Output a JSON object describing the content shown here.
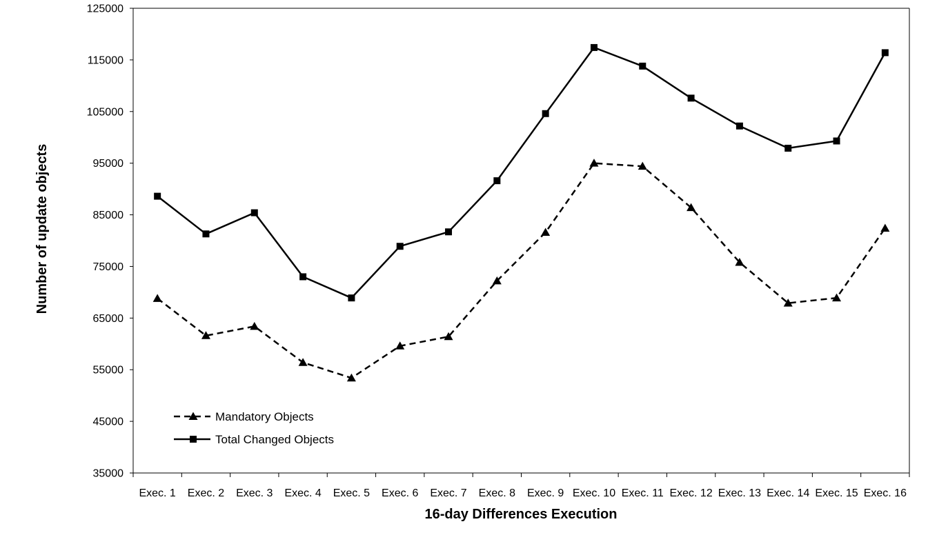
{
  "chart_data": {
    "type": "line",
    "title": "",
    "xlabel": "16-day Differences Execution",
    "ylabel": "Number of update objects",
    "categories": [
      "Exec. 1",
      "Exec. 2",
      "Exec. 3",
      "Exec. 4",
      "Exec. 5",
      "Exec. 6",
      "Exec. 7",
      "Exec. 8",
      "Exec. 9",
      "Exec. 10",
      "Exec. 11",
      "Exec. 12",
      "Exec. 13",
      "Exec. 14",
      "Exec. 15",
      "Exec. 16"
    ],
    "ylim": [
      35000,
      125000
    ],
    "yticks": [
      35000,
      45000,
      55000,
      65000,
      75000,
      85000,
      95000,
      105000,
      115000,
      125000
    ],
    "grid": false,
    "legend_position": "bottom-left",
    "series": [
      {
        "name": "Mandatory Objects",
        "style": "dashed",
        "marker": "triangle",
        "color": "#000000",
        "values": [
          68800,
          61600,
          63400,
          56400,
          53400,
          59600,
          61400,
          72200,
          81600,
          95000,
          94400,
          86400,
          75800,
          67900,
          68900,
          82400
        ]
      },
      {
        "name": "Total Changed Objects",
        "style": "solid",
        "marker": "square",
        "color": "#000000",
        "values": [
          88600,
          81300,
          85400,
          73000,
          68900,
          78900,
          81700,
          91600,
          104600,
          117400,
          113800,
          107600,
          102200,
          97900,
          99300,
          116400
        ]
      }
    ]
  }
}
